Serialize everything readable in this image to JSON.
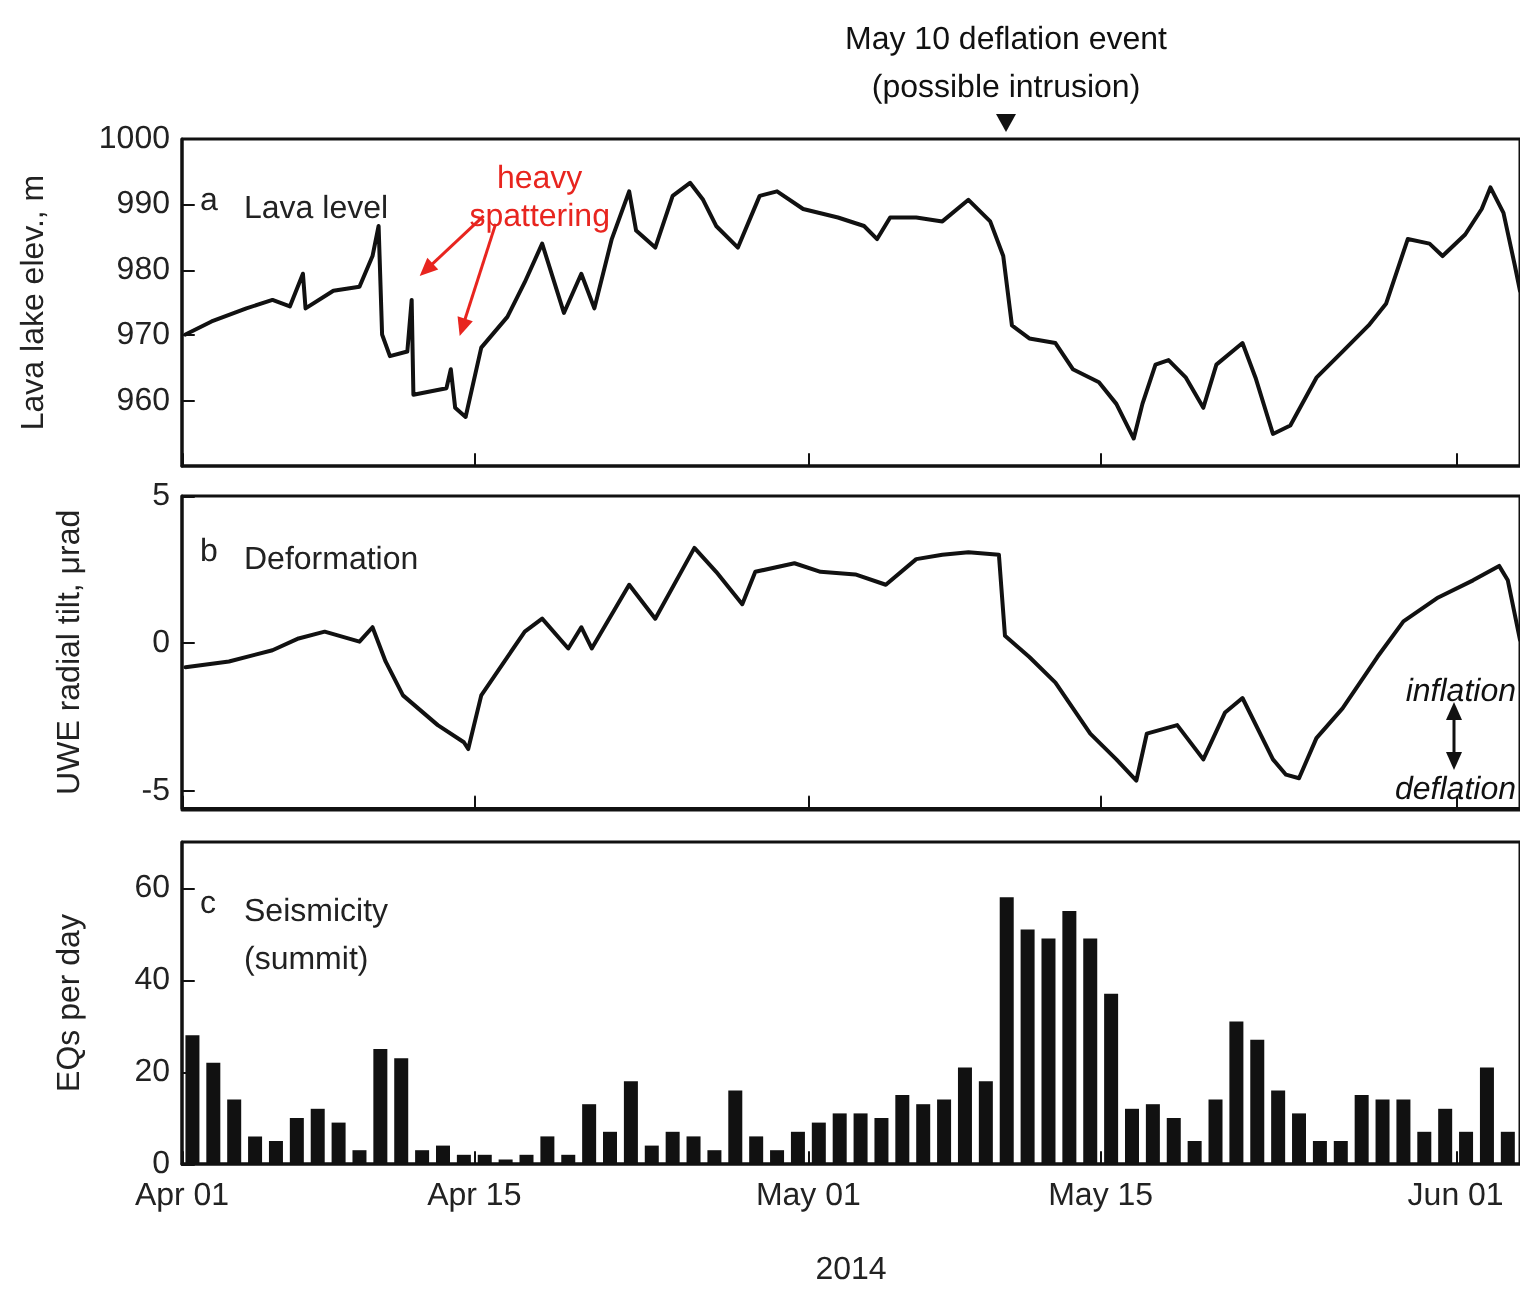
{
  "chart_data": [
    {
      "type": "line",
      "title": "a   Lava level",
      "ylabel": "Lava lake elev., m",
      "tick_labels": "y",
      "annotations": [
        "May 10 deflation event\n(possible intrusion)",
        {
          "text": "heavy\nspattering",
          "x": "2014-04-12T00:00",
          "y": 975.4
        }
      ],
      "xlim": [
        "2014-04-01T00:00",
        "2014-06-04T02:00"
      ],
      "ylim": [
        950,
        1000
      ],
      "yticks": [
        960,
        970,
        980,
        990,
        1000
      ],
      "xticks": [
        {
          "value": "2014-04-01",
          "label": null
        },
        {
          "value": "2014-04-15",
          "label": null
        },
        {
          "value": "2014-05-01",
          "label": null
        },
        {
          "value": "2014-05-15",
          "label": null
        },
        {
          "value": "2014-06-01",
          "label": null
        }
      ],
      "x": [
        "2014-04-01T04:00",
        "2014-04-02T10:00",
        "2014-04-04T02:00",
        "2014-04-05T08:00",
        "2014-04-06T04:00",
        "2014-04-06T19:00",
        "2014-04-06T22:00",
        "2014-04-08T06:00",
        "2014-04-09T12:00",
        "2014-04-10T03:00",
        "2014-04-10T10:00",
        "2014-04-10T14:00",
        "2014-04-10T23:00",
        "2014-04-11T19:00",
        "2014-04-12T00:00",
        "2014-04-12T02:00",
        "2014-04-13T16:00",
        "2014-04-13T21:00",
        "2014-04-14T02:00",
        "2014-04-14T14:00",
        "2014-04-15T08:00",
        "2014-04-16T14:00",
        "2014-04-17T10:00",
        "2014-04-18T06:00",
        "2014-04-19T07:00",
        "2014-04-20T03:00",
        "2014-04-20T18:00",
        "2014-04-21T14:00",
        "2014-04-22T10:00",
        "2014-04-22T18:00",
        "2014-04-23T16:00",
        "2014-04-24T12:00",
        "2014-04-25T08:00",
        "2014-04-25T23:00",
        "2014-04-26T14:00",
        "2014-04-27T15:00",
        "2014-04-28T16:00",
        "2014-04-29T12:00",
        "2014-04-30T18:00",
        "2014-05-02T10:00",
        "2014-05-03T16:00",
        "2014-05-04T07:00",
        "2014-05-04T22:00",
        "2014-05-06T04:00",
        "2014-05-07T10:00",
        "2014-05-08T16:00",
        "2014-05-09T17:00",
        "2014-05-10T08:00",
        "2014-05-10T18:00",
        "2014-05-11T14:00",
        "2014-05-12T20:00",
        "2014-05-13T16:00",
        "2014-05-14T22:00",
        "2014-05-15T18:00",
        "2014-05-16T14:00",
        "2014-05-17T00:00",
        "2014-05-17T15:00",
        "2014-05-18T06:00",
        "2014-05-19T02:00",
        "2014-05-19T22:00",
        "2014-05-20T13:00",
        "2014-05-21T19:00",
        "2014-05-22T10:00",
        "2014-05-23T06:00",
        "2014-05-24T02:00",
        "2014-05-25T08:00",
        "2014-05-26T14:00",
        "2014-05-27T20:00",
        "2014-05-28T16:00",
        "2014-05-29T17:00",
        "2014-05-30T18:00",
        "2014-05-31T09:00",
        "2014-06-01T11:00",
        "2014-06-02T06:00",
        "2014-06-02T16:00",
        "2014-06-03T07:00",
        "2014-06-03T20:00",
        "2014-06-04T02:00"
      ],
      "series": [
        {
          "color": "#111111",
          "values": [
            970.1,
            972.1,
            974.1,
            975.4,
            974.4,
            979.4,
            974.1,
            976.8,
            977.4,
            982.1,
            986.7,
            970.1,
            966.8,
            967.5,
            975.4,
            960.9,
            961.9,
            964.8,
            958.9,
            957.5,
            968.1,
            972.8,
            978.1,
            984.0,
            973.4,
            979.4,
            974.1,
            984.7,
            992.0,
            986.0,
            983.4,
            991.3,
            993.3,
            990.7,
            986.7,
            983.4,
            991.3,
            992.0,
            989.3,
            988.0,
            986.7,
            984.7,
            988.0,
            988.0,
            987.4,
            990.7,
            987.4,
            982.1,
            971.5,
            969.5,
            968.8,
            964.8,
            962.8,
            959.5,
            954.2,
            959.5,
            965.5,
            966.2,
            963.5,
            958.9,
            965.5,
            968.8,
            963.5,
            954.9,
            956.2,
            963.5,
            967.5,
            971.5,
            974.8,
            984.7,
            984.0,
            982.1,
            985.4,
            989.3,
            992.6,
            988.7,
            980.7,
            976.8
          ]
        }
      ]
    },
    {
      "type": "line",
      "title": "b   Deformation",
      "ylabel": "UWE radial tilt, μrad",
      "tick_labels": "y",
      "annotations": [
        "inflation",
        "deflation"
      ],
      "xlim": [
        "2014-04-01T00:00",
        "2014-06-04T02:00"
      ],
      "ylim": [
        -5.6,
        5
      ],
      "yticks": [
        -5,
        0,
        5
      ],
      "xticks": [
        {
          "value": "2014-04-01",
          "label": null
        },
        {
          "value": "2014-04-15",
          "label": null
        },
        {
          "value": "2014-05-01",
          "label": null
        },
        {
          "value": "2014-05-15",
          "label": null
        },
        {
          "value": "2014-06-01",
          "label": null
        }
      ],
      "x": [
        "2014-04-01T04:00",
        "2014-04-03T06:00",
        "2014-04-05T08:00",
        "2014-04-06T14:00",
        "2014-04-07T20:00",
        "2014-04-09T12:00",
        "2014-04-10T03:00",
        "2014-04-10T18:00",
        "2014-04-11T14:00",
        "2014-04-13T06:00",
        "2014-04-14T12:00",
        "2014-04-14T17:00",
        "2014-04-15T08:00",
        "2014-04-16T14:00",
        "2014-04-17T10:00",
        "2014-04-18T06:00",
        "2014-04-19T12:00",
        "2014-04-20T03:00",
        "2014-04-20T15:00",
        "2014-04-22T10:00",
        "2014-04-23T16:00",
        "2014-04-25T13:00",
        "2014-04-26T14:00",
        "2014-04-27T20:00",
        "2014-04-28T11:00",
        "2014-04-30T08:00",
        "2014-05-01T14:00",
        "2014-05-03T06:00",
        "2014-05-04T17:00",
        "2014-05-06T04:00",
        "2014-05-07T10:00",
        "2014-05-08T16:00",
        "2014-05-10T03:00",
        "2014-05-10T10:00",
        "2014-05-11T14:00",
        "2014-05-12T20:00",
        "2014-05-14T12:00",
        "2014-05-15T18:00",
        "2014-05-16T17:00",
        "2014-05-17T05:00",
        "2014-05-18T16:00",
        "2014-05-19T22:00",
        "2014-05-20T23:00",
        "2014-05-21T19:00",
        "2014-05-23T06:00",
        "2014-05-23T21:00",
        "2014-05-24T12:00",
        "2014-05-25T08:00",
        "2014-05-26T14:00",
        "2014-05-28T06:00",
        "2014-05-29T12:00",
        "2014-05-31T04:00",
        "2014-06-01T20:00",
        "2014-06-03T02:00",
        "2014-06-03T12:00",
        "2014-06-04T02:00"
      ],
      "series": [
        {
          "color": "#111111",
          "values": [
            -0.81,
            -0.61,
            -0.23,
            0.17,
            0.4,
            0.06,
            0.55,
            -0.61,
            -1.76,
            -2.77,
            -3.35,
            -3.58,
            -1.76,
            -0.46,
            0.4,
            0.84,
            -0.17,
            0.55,
            -0.17,
            1.99,
            0.84,
            3.24,
            2.43,
            1.33,
            2.43,
            2.72,
            2.43,
            2.34,
            1.99,
            2.86,
            3.01,
            3.09,
            3.01,
            0.26,
            -0.46,
            -1.33,
            -3.06,
            -3.93,
            -4.65,
            -3.06,
            -2.77,
            -3.93,
            -2.34,
            -1.85,
            -3.93,
            -4.45,
            -4.57,
            -3.21,
            -2.2,
            -0.46,
            0.75,
            1.56,
            2.14,
            2.63,
            2.14,
            0.12
          ]
        }
      ]
    },
    {
      "type": "bar",
      "title": "c   Seismicity\n(summit)",
      "ylabel": "EQs per day",
      "xlabel": "2014",
      "xlim": [
        "2014-04-01T00:00",
        "2014-06-04T02:00"
      ],
      "ylim": [
        0,
        70
      ],
      "yticks": [
        0,
        20,
        40,
        60
      ],
      "xticks": [
        {
          "value": "2014-04-01",
          "label": "Apr 01"
        },
        {
          "value": "2014-04-15",
          "label": "Apr 15"
        },
        {
          "value": "2014-05-01",
          "label": "May 01"
        },
        {
          "value": "2014-05-15",
          "label": "May 15"
        },
        {
          "value": "2014-06-01",
          "label": "Jun 01"
        }
      ],
      "x": [
        "2014-04-01T12:00",
        "2014-04-02T12:00",
        "2014-04-03T12:00",
        "2014-04-04T12:00",
        "2014-04-05T12:00",
        "2014-04-06T12:00",
        "2014-04-07T12:00",
        "2014-04-08T12:00",
        "2014-04-09T12:00",
        "2014-04-10T12:00",
        "2014-04-11T12:00",
        "2014-04-12T12:00",
        "2014-04-13T12:00",
        "2014-04-14T12:00",
        "2014-04-15T12:00",
        "2014-04-16T12:00",
        "2014-04-17T12:00",
        "2014-04-18T12:00",
        "2014-04-19T12:00",
        "2014-04-20T12:00",
        "2014-04-21T12:00",
        "2014-04-22T12:00",
        "2014-04-23T12:00",
        "2014-04-24T12:00",
        "2014-04-25T12:00",
        "2014-04-26T12:00",
        "2014-04-27T12:00",
        "2014-04-28T12:00",
        "2014-04-29T12:00",
        "2014-04-30T12:00",
        "2014-05-01T12:00",
        "2014-05-02T12:00",
        "2014-05-03T12:00",
        "2014-05-04T12:00",
        "2014-05-05T12:00",
        "2014-05-06T12:00",
        "2014-05-07T12:00",
        "2014-05-08T12:00",
        "2014-05-09T12:00",
        "2014-05-10T12:00",
        "2014-05-11T12:00",
        "2014-05-12T12:00",
        "2014-05-13T12:00",
        "2014-05-14T12:00",
        "2014-05-15T12:00",
        "2014-05-16T12:00",
        "2014-05-17T12:00",
        "2014-05-18T12:00",
        "2014-05-19T12:00",
        "2014-05-20T12:00",
        "2014-05-21T12:00",
        "2014-05-22T12:00",
        "2014-05-23T12:00",
        "2014-05-24T12:00",
        "2014-05-25T12:00",
        "2014-05-26T12:00",
        "2014-05-27T12:00",
        "2014-05-28T12:00",
        "2014-05-29T12:00",
        "2014-05-30T12:00",
        "2014-05-31T12:00",
        "2014-06-01T12:00",
        "2014-06-02T12:00",
        "2014-06-03T12:00"
      ],
      "series": [
        {
          "color": "#111111",
          "values": [
            28,
            22,
            14,
            6,
            5,
            10,
            12,
            9,
            3,
            25,
            23,
            3,
            4,
            2,
            2,
            1,
            2,
            6,
            2,
            13,
            7,
            18,
            4,
            7,
            6,
            3,
            16,
            6,
            3,
            7,
            9,
            11,
            11,
            10,
            15,
            13,
            14,
            21,
            18,
            58,
            51,
            49,
            55,
            49,
            37,
            12,
            13,
            10,
            5,
            14,
            31,
            27,
            16,
            11,
            5,
            5,
            15,
            14,
            14,
            7,
            12,
            7,
            21,
            7
          ]
        }
      ]
    }
  ]
}
